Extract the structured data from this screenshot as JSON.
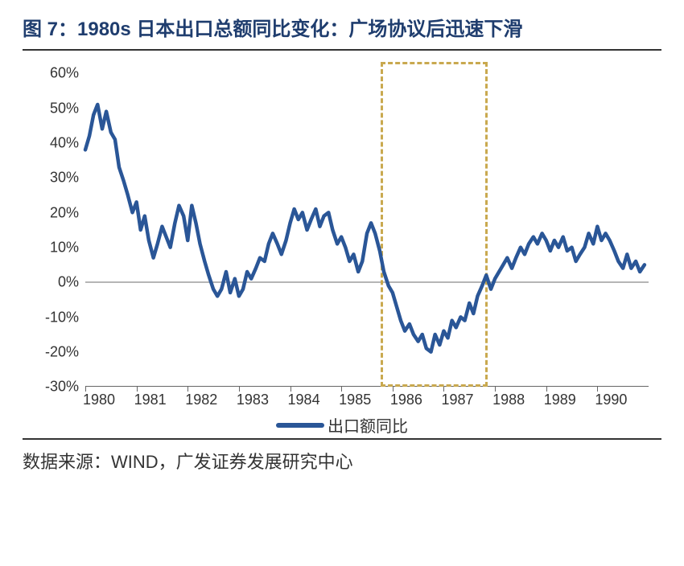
{
  "title": "图 7：1980s 日本出口总额同比变化：广场协议后迅速下滑",
  "source": "数据来源：WIND，广发证券发展研究中心",
  "chart": {
    "type": "line",
    "series_name": "出口额同比",
    "line_color": "#2a5697",
    "line_width": 4.5,
    "background_color": "#ffffff",
    "zero_line_color": "#b5b5b5",
    "highlight_border_color": "#c9a94f",
    "title_color": "#1f3d6e",
    "title_fontsize": 24,
    "label_fontsize": 18,
    "legend_fontsize": 20,
    "ylim": [
      -30,
      60
    ],
    "ytick_step": 10,
    "y_ticks": [
      -30,
      -20,
      -10,
      0,
      10,
      20,
      30,
      40,
      50,
      60
    ],
    "y_tick_labels": [
      "-30%",
      "-20%",
      "-10%",
      "0%",
      "10%",
      "20%",
      "30%",
      "40%",
      "50%",
      "60%"
    ],
    "xlim": [
      1980,
      1991
    ],
    "x_ticks": [
      1980,
      1981,
      1982,
      1983,
      1984,
      1985,
      1986,
      1987,
      1988,
      1989,
      1990
    ],
    "highlight_range": [
      1985.77,
      1987.85
    ],
    "data": [
      [
        1980.0,
        38
      ],
      [
        1980.08,
        42
      ],
      [
        1980.16,
        48
      ],
      [
        1980.24,
        51
      ],
      [
        1980.33,
        44
      ],
      [
        1980.41,
        49
      ],
      [
        1980.5,
        43
      ],
      [
        1980.58,
        41
      ],
      [
        1980.66,
        33
      ],
      [
        1980.75,
        29
      ],
      [
        1980.83,
        25
      ],
      [
        1980.92,
        20
      ],
      [
        1981.0,
        23
      ],
      [
        1981.08,
        15
      ],
      [
        1981.16,
        19
      ],
      [
        1981.24,
        12
      ],
      [
        1981.33,
        7
      ],
      [
        1981.41,
        11
      ],
      [
        1981.5,
        16
      ],
      [
        1981.58,
        13
      ],
      [
        1981.66,
        10
      ],
      [
        1981.75,
        17
      ],
      [
        1981.83,
        22
      ],
      [
        1981.92,
        19
      ],
      [
        1982.0,
        12
      ],
      [
        1982.08,
        22
      ],
      [
        1982.16,
        17
      ],
      [
        1982.24,
        11
      ],
      [
        1982.33,
        6
      ],
      [
        1982.41,
        2
      ],
      [
        1982.5,
        -2
      ],
      [
        1982.58,
        -4
      ],
      [
        1982.66,
        -2
      ],
      [
        1982.75,
        3
      ],
      [
        1982.83,
        -3
      ],
      [
        1982.92,
        1
      ],
      [
        1983.0,
        -4
      ],
      [
        1983.08,
        -2
      ],
      [
        1983.16,
        3
      ],
      [
        1983.24,
        1
      ],
      [
        1983.33,
        4
      ],
      [
        1983.41,
        7
      ],
      [
        1983.5,
        6
      ],
      [
        1983.58,
        11
      ],
      [
        1983.66,
        14
      ],
      [
        1983.75,
        11
      ],
      [
        1983.83,
        8
      ],
      [
        1983.92,
        12
      ],
      [
        1984.0,
        17
      ],
      [
        1984.08,
        21
      ],
      [
        1984.16,
        18
      ],
      [
        1984.24,
        20
      ],
      [
        1984.33,
        15
      ],
      [
        1984.41,
        18
      ],
      [
        1984.5,
        21
      ],
      [
        1984.58,
        16
      ],
      [
        1984.66,
        19
      ],
      [
        1984.75,
        20
      ],
      [
        1984.83,
        15
      ],
      [
        1984.92,
        11
      ],
      [
        1985.0,
        13
      ],
      [
        1985.08,
        10
      ],
      [
        1985.16,
        6
      ],
      [
        1985.24,
        8
      ],
      [
        1985.33,
        3
      ],
      [
        1985.41,
        6
      ],
      [
        1985.5,
        14
      ],
      [
        1985.58,
        17
      ],
      [
        1985.66,
        14
      ],
      [
        1985.75,
        9
      ],
      [
        1985.83,
        3
      ],
      [
        1985.92,
        -1
      ],
      [
        1986.0,
        -3
      ],
      [
        1986.08,
        -7
      ],
      [
        1986.16,
        -11
      ],
      [
        1986.24,
        -14
      ],
      [
        1986.33,
        -12
      ],
      [
        1986.41,
        -15
      ],
      [
        1986.5,
        -17
      ],
      [
        1986.58,
        -15
      ],
      [
        1986.66,
        -19
      ],
      [
        1986.75,
        -20
      ],
      [
        1986.83,
        -15
      ],
      [
        1986.92,
        -18
      ],
      [
        1987.0,
        -14
      ],
      [
        1987.08,
        -16
      ],
      [
        1987.16,
        -11
      ],
      [
        1987.24,
        -13
      ],
      [
        1987.33,
        -10
      ],
      [
        1987.41,
        -11
      ],
      [
        1987.5,
        -6
      ],
      [
        1987.58,
        -9
      ],
      [
        1987.66,
        -4
      ],
      [
        1987.75,
        -1
      ],
      [
        1987.83,
        2
      ],
      [
        1987.92,
        -2
      ],
      [
        1988.0,
        1
      ],
      [
        1988.08,
        3
      ],
      [
        1988.16,
        5
      ],
      [
        1988.24,
        7
      ],
      [
        1988.33,
        4
      ],
      [
        1988.41,
        7
      ],
      [
        1988.5,
        10
      ],
      [
        1988.58,
        8
      ],
      [
        1988.66,
        11
      ],
      [
        1988.75,
        13
      ],
      [
        1988.83,
        11
      ],
      [
        1988.92,
        14
      ],
      [
        1989.0,
        12
      ],
      [
        1989.08,
        9
      ],
      [
        1989.16,
        12
      ],
      [
        1989.24,
        10
      ],
      [
        1989.33,
        13
      ],
      [
        1989.41,
        9
      ],
      [
        1989.5,
        10
      ],
      [
        1989.58,
        6
      ],
      [
        1989.66,
        8
      ],
      [
        1989.75,
        10
      ],
      [
        1989.83,
        14
      ],
      [
        1989.92,
        11
      ],
      [
        1990.0,
        16
      ],
      [
        1990.08,
        12
      ],
      [
        1990.16,
        14
      ],
      [
        1990.24,
        12
      ],
      [
        1990.33,
        9
      ],
      [
        1990.41,
        6
      ],
      [
        1990.5,
        4
      ],
      [
        1990.58,
        8
      ],
      [
        1990.66,
        4
      ],
      [
        1990.75,
        6
      ],
      [
        1990.83,
        3
      ],
      [
        1990.92,
        5
      ]
    ]
  }
}
